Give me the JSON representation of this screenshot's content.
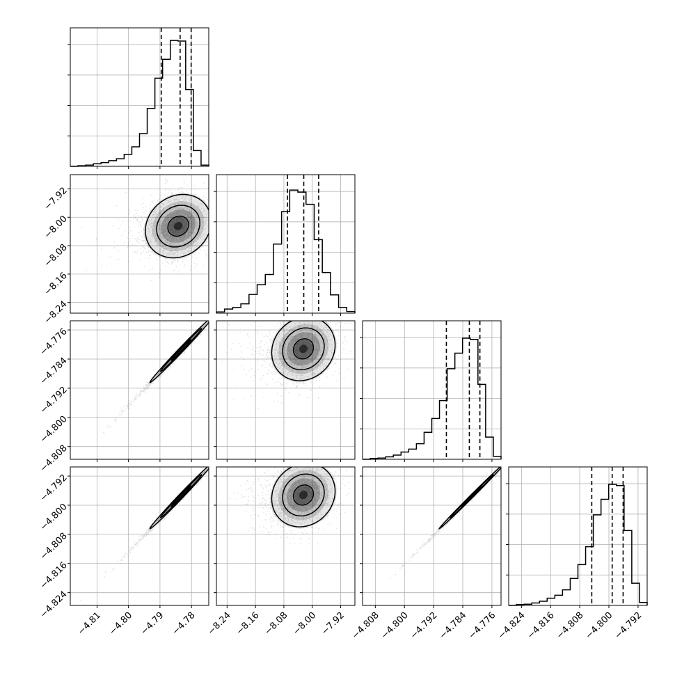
{
  "chart_data": {
    "type": "corner",
    "n_params": 4,
    "grid": true,
    "params": [
      {
        "range": [
          -4.8185,
          -4.7745
        ],
        "ticks": [
          -4.81,
          -4.8,
          -4.79,
          -4.78
        ],
        "tick_labels": [
          "−4.81",
          "−4.80",
          "−4.79",
          "−4.78"
        ],
        "quantiles": [
          -4.7896,
          -4.7836,
          -4.7801
        ],
        "hist_max": 0.2,
        "hist": [
          0,
          0.001,
          0.002,
          0.004,
          0.006,
          0.009,
          0.012,
          0.019,
          0.031,
          0.052,
          0.092,
          0.14,
          0.17,
          0.2,
          0.199,
          0.122,
          0.025,
          0.002
        ]
      },
      {
        "range": [
          -8.27,
          -7.88
        ],
        "ticks": [
          -8.24,
          -8.16,
          -8.08,
          -8.0,
          -7.92
        ],
        "tick_labels": [
          "−8.24",
          "−8.16",
          "−8.08",
          "−8.00",
          "−7.92"
        ],
        "quantiles": [
          -8.07,
          -8.024,
          -7.982
        ],
        "hist_max": 0.31,
        "hist": [
          0.003,
          0.01,
          0.014,
          0.023,
          0.046,
          0.07,
          0.095,
          0.17,
          0.25,
          0.303,
          0.298,
          0.268,
          0.181,
          0.1,
          0.045,
          0.014,
          0.004
        ]
      },
      {
        "range": [
          -4.8115,
          -4.7735
        ],
        "ticks": [
          -4.808,
          -4.8,
          -4.792,
          -4.784,
          -4.776
        ],
        "tick_labels": [
          "−4.808",
          "−4.800",
          "−4.792",
          "−4.784",
          "−4.776"
        ],
        "quantiles": [
          -4.7885,
          -4.7822,
          -4.7793
        ],
        "hist_max": 0.21,
        "hist": [
          0,
          0.0015,
          0.002,
          0.004,
          0.007,
          0.012,
          0.017,
          0.026,
          0.045,
          0.068,
          0.098,
          0.151,
          0.177,
          0.202,
          0.2,
          0.125,
          0.037,
          0.005
        ]
      },
      {
        "range": [
          -4.8275,
          -4.7895
        ],
        "ticks": [
          -4.824,
          -4.816,
          -4.808,
          -4.8,
          -4.792
        ],
        "tick_labels": [
          "−4.824",
          "−4.816",
          "−4.808",
          "−4.800",
          "−4.792"
        ],
        "quantiles": [
          -4.8047,
          -4.7991,
          -4.7961
        ],
        "hist_max": 0.21,
        "hist": [
          0,
          0.0015,
          0.002,
          0.004,
          0.007,
          0.012,
          0.017,
          0.026,
          0.045,
          0.068,
          0.098,
          0.151,
          0.177,
          0.202,
          0.2,
          0.125,
          0.037,
          0.005
        ]
      }
    ],
    "pairs": [
      {
        "row": 1,
        "col": 0,
        "mean": [
          -4.7842,
          -8.025
        ],
        "sd": [
          0.0055,
          0.047
        ],
        "rho": 0.15
      },
      {
        "row": 2,
        "col": 0,
        "mean": [
          -4.7833,
          -4.7815
        ],
        "sd": [
          0.0052,
          0.0047
        ],
        "rho": 0.995
      },
      {
        "row": 2,
        "col": 1,
        "mean": [
          -8.025,
          -4.7812
        ],
        "sd": [
          0.047,
          0.0046
        ],
        "rho": 0.12
      },
      {
        "row": 3,
        "col": 0,
        "mean": [
          -4.7833,
          -4.7975
        ],
        "sd": [
          0.0052,
          0.0047
        ],
        "rho": 0.995
      },
      {
        "row": 3,
        "col": 1,
        "mean": [
          -8.025,
          -4.7972
        ],
        "sd": [
          0.047,
          0.0046
        ],
        "rho": 0.12
      },
      {
        "row": 3,
        "col": 2,
        "mean": [
          -4.7815,
          -4.7975
        ],
        "sd": [
          0.0047,
          0.0047
        ],
        "rho": 0.998
      }
    ]
  }
}
